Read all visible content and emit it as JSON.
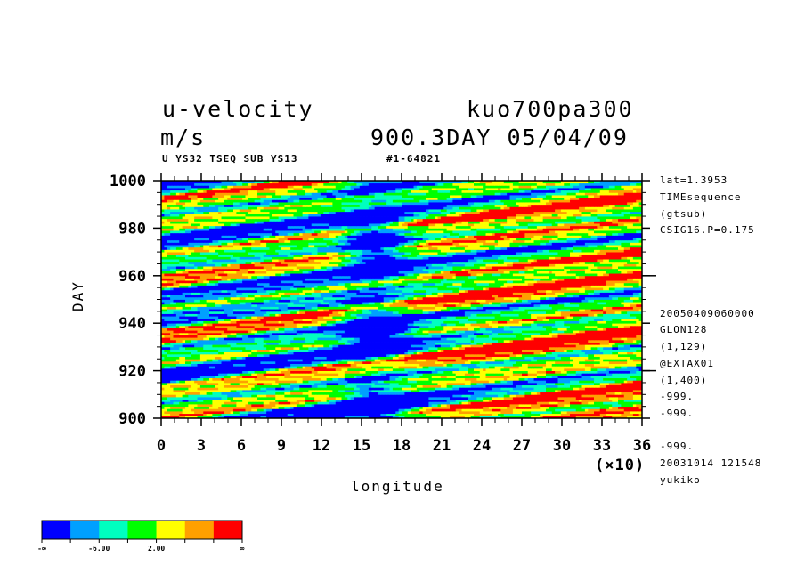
{
  "header": {
    "var_name": "u-velocity",
    "units": "m/s",
    "run_name": "kuo700pa300",
    "time_label": "900.3DAY 05/04/09",
    "sub_left": "U YS32 TSEQ SUB YS13",
    "sub_mid": "#1-64821"
  },
  "side_info": {
    "top": [
      "lat=1.3953",
      "TIMEsequence",
      "(gtsub)",
      "CSIG16.P=0.175"
    ],
    "bottom": [
      "20050409060000",
      "GLON128",
      "(1,129)",
      "@EXTAX01",
      "(1,400)",
      "-999.",
      "-999.",
      "-999.",
      "20031014 121548",
      "yukiko"
    ]
  },
  "chart_data": {
    "type": "heatmap",
    "title": "u-velocity",
    "xlabel": "longitude",
    "ylabel": "DAY",
    "x_multiplier_label": "(×10)",
    "xlim": [
      0,
      36
    ],
    "ylim": [
      900,
      1000
    ],
    "x_ticks": [
      0,
      3,
      6,
      9,
      12,
      15,
      18,
      21,
      24,
      27,
      30,
      33,
      36
    ],
    "x_tick_labels": [
      "0",
      "3",
      "6",
      "9",
      "12",
      "15",
      "18",
      "21",
      "24",
      "27",
      "30",
      "33",
      "36"
    ],
    "y_ticks": [
      900,
      920,
      940,
      960,
      980,
      1000
    ],
    "y_tick_labels": [
      "900",
      "920",
      "940",
      "960",
      "980",
      "1000"
    ],
    "colorbar": {
      "colors": [
        "#0000ff",
        "#00a0ff",
        "#00ffc0",
        "#00ff00",
        "#ffff00",
        "#ffa000",
        "#ff0000"
      ],
      "labels": [
        "-∞",
        "-6.00",
        "2.00",
        "∞"
      ],
      "label_positions": [
        0,
        2,
        4,
        7
      ]
    }
  }
}
